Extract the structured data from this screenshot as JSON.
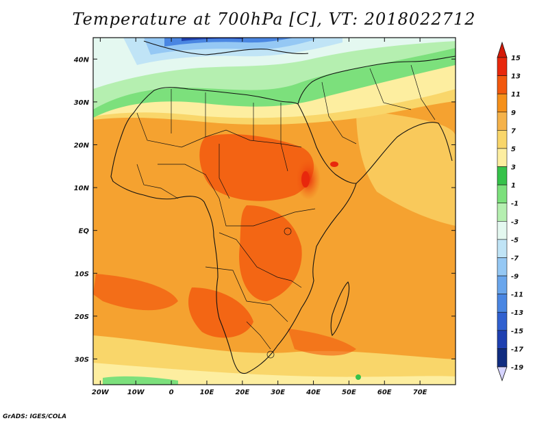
{
  "title": "Temperature at 700hPa [C], VT: 2018022712",
  "credit": "GrADS: IGES/COLA",
  "map": {
    "lon_range": [
      -22,
      80
    ],
    "lat_range": [
      -36,
      45
    ],
    "x_ticks": [
      {
        "lon": -20,
        "label": "20W"
      },
      {
        "lon": -10,
        "label": "10W"
      },
      {
        "lon": 0,
        "label": "0"
      },
      {
        "lon": 10,
        "label": "10E"
      },
      {
        "lon": 20,
        "label": "20E"
      },
      {
        "lon": 30,
        "label": "30E"
      },
      {
        "lon": 40,
        "label": "40E"
      },
      {
        "lon": 50,
        "label": "50E"
      },
      {
        "lon": 60,
        "label": "60E"
      },
      {
        "lon": 70,
        "label": "70E"
      }
    ],
    "y_ticks": [
      {
        "lat": 40,
        "label": "40N"
      },
      {
        "lat": 30,
        "label": "30N"
      },
      {
        "lat": 20,
        "label": "20N"
      },
      {
        "lat": 10,
        "label": "10N"
      },
      {
        "lat": 0,
        "label": "EQ"
      },
      {
        "lat": -10,
        "label": "10S"
      },
      {
        "lat": -20,
        "label": "20S"
      },
      {
        "lat": -30,
        "label": "30S"
      }
    ]
  },
  "colorbar": {
    "labels": [
      "15",
      "13",
      "11",
      "9",
      "7",
      "5",
      "3",
      "1",
      "-1",
      "-3",
      "-5",
      "-7",
      "-9",
      "-11",
      "-13",
      "-15",
      "-17",
      "-19"
    ],
    "colors": [
      "#e8270c",
      "#f2580e",
      "#f5901a",
      "#f5b24a",
      "#f9d66a",
      "#fdeea0",
      "#36c24a",
      "#7ce07c",
      "#b5efb0",
      "#e4f8f0",
      "#c0e4f6",
      "#95c8f4",
      "#6aa6ec",
      "#4a86e2",
      "#3060d0",
      "#1e40b0",
      "#102c80"
    ],
    "top_arrow_color": "#d41a08",
    "bottom_arrow_color": "#d6d4ff"
  }
}
